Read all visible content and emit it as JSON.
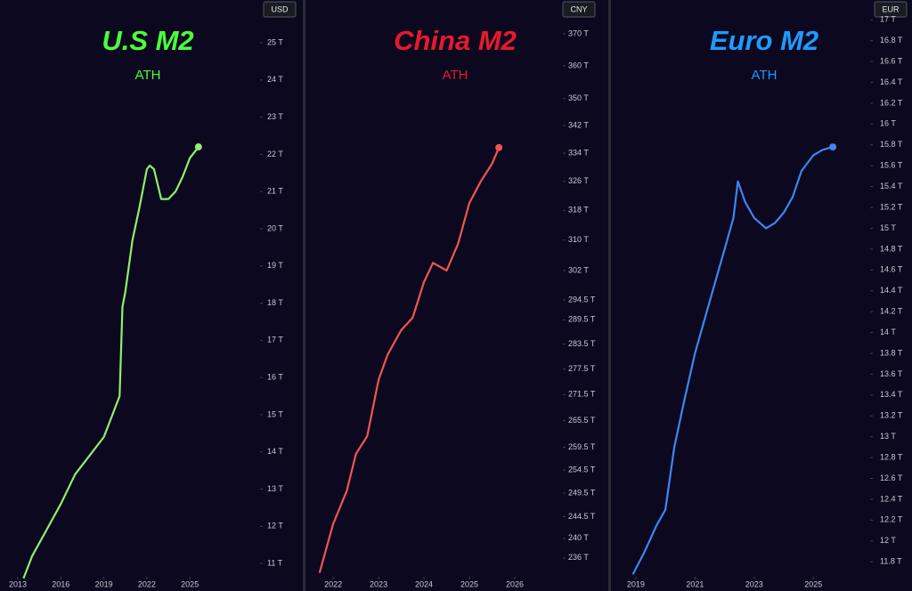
{
  "chart_data": [
    {
      "type": "line",
      "title": "U.S M2",
      "subtitle": "ATH",
      "currency": "USD",
      "title_color": "#4cff3a",
      "color": "#8ef06b",
      "x": [
        2013.4,
        2014,
        2015,
        2016,
        2017,
        2018,
        2019,
        2019.9,
        2020.1,
        2020.3,
        2020.5,
        2021,
        2021.5,
        2022,
        2022.2,
        2022.5,
        2023,
        2023.5,
        2024,
        2024.5,
        2025,
        2025.6
      ],
      "values": [
        10.6,
        11.2,
        11.9,
        12.6,
        13.4,
        13.9,
        14.4,
        15.3,
        15.5,
        17.9,
        18.3,
        19.7,
        20.6,
        21.6,
        21.7,
        21.6,
        20.8,
        20.8,
        21.0,
        21.4,
        21.9,
        22.2
      ],
      "xlim": [
        2011.76,
        2029.77
      ],
      "xticks": [
        2013,
        2016,
        2019,
        2022,
        2025
      ],
      "ylim": [
        10.26,
        26.15
      ],
      "log_scale": false,
      "yticks": [
        {
          "value": 11,
          "label": "11 T"
        },
        {
          "value": 12,
          "label": "12 T"
        },
        {
          "value": 13,
          "label": "13 T"
        },
        {
          "value": 14,
          "label": "14 T"
        },
        {
          "value": 15,
          "label": "15 T"
        },
        {
          "value": 16,
          "label": "16 T"
        },
        {
          "value": 17,
          "label": "17 T"
        },
        {
          "value": 18,
          "label": "18 T"
        },
        {
          "value": 19,
          "label": "19 T"
        },
        {
          "value": 20,
          "label": "20 T"
        },
        {
          "value": 21,
          "label": "21 T"
        },
        {
          "value": 22,
          "label": "22 T"
        },
        {
          "value": 23,
          "label": "23 T"
        },
        {
          "value": 24,
          "label": "24 T"
        },
        {
          "value": 25,
          "label": "25 T"
        }
      ]
    },
    {
      "type": "line",
      "title": "China M2",
      "subtitle": "ATH",
      "currency": "CNY",
      "title_color": "#e8192c",
      "color": "#f0564f",
      "x": [
        2021.7,
        2022,
        2022.3,
        2022.5,
        2022.75,
        2023,
        2023.2,
        2023.5,
        2023.75,
        2024,
        2024.2,
        2024.5,
        2024.75,
        2025,
        2025.25,
        2025.5,
        2025.65
      ],
      "values": [
        233,
        243,
        250,
        258,
        262,
        275,
        281,
        287,
        290,
        299,
        304,
        302,
        309,
        320,
        326,
        331,
        335.6
      ],
      "xlim": [
        2021.39,
        2027.02
      ],
      "xticks": [
        2022,
        2023,
        2024,
        2025,
        2026
      ],
      "ylim": [
        229.4,
        380.9
      ],
      "log_scale": true,
      "yticks": [
        {
          "value": 236,
          "label": "236 T"
        },
        {
          "value": 240,
          "label": "240 T"
        },
        {
          "value": 244.5,
          "label": "244.5 T"
        },
        {
          "value": 249.5,
          "label": "249.5 T"
        },
        {
          "value": 254.5,
          "label": "254.5 T"
        },
        {
          "value": 259.5,
          "label": "259.5 T"
        },
        {
          "value": 265.5,
          "label": "265.5 T"
        },
        {
          "value": 271.5,
          "label": "271.5 T"
        },
        {
          "value": 277.5,
          "label": "277.5 T"
        },
        {
          "value": 283.5,
          "label": "283.5 T"
        },
        {
          "value": 289.5,
          "label": "289.5 T"
        },
        {
          "value": 294.5,
          "label": "294.5 T"
        },
        {
          "value": 302,
          "label": "302 T"
        },
        {
          "value": 310,
          "label": "310 T"
        },
        {
          "value": 318,
          "label": "318 T"
        },
        {
          "value": 326,
          "label": "326 T"
        },
        {
          "value": 334,
          "label": "334 T"
        },
        {
          "value": 342,
          "label": "342 T"
        },
        {
          "value": 350,
          "label": "350 T"
        },
        {
          "value": 360,
          "label": "360 T"
        },
        {
          "value": 370,
          "label": "370 T"
        }
      ]
    },
    {
      "type": "line",
      "title": "Euro M2",
      "subtitle": "ATH",
      "currency": "EUR",
      "title_color": "#1e9bff",
      "color": "#3d86f0",
      "x": [
        2018.9,
        2019.3,
        2019.7,
        2020.0,
        2020.3,
        2020.6,
        2021,
        2021.5,
        2022,
        2022.3,
        2022.45,
        2022.7,
        2023,
        2023.4,
        2023.7,
        2024,
        2024.3,
        2024.6,
        2025,
        2025.3,
        2025.66
      ],
      "values": [
        11.68,
        11.9,
        12.15,
        12.3,
        12.9,
        13.3,
        13.8,
        14.3,
        14.8,
        15.1,
        15.45,
        15.25,
        15.1,
        15.0,
        15.05,
        15.15,
        15.3,
        15.55,
        15.7,
        15.75,
        15.78
      ],
      "xlim": [
        2018.16,
        2026.86
      ],
      "xticks": [
        2019,
        2021,
        2023,
        2025
      ],
      "ylim": [
        11.52,
        17.19
      ],
      "log_scale": false,
      "yticks": [
        {
          "value": 11.8,
          "label": "11.8 T"
        },
        {
          "value": 12,
          "label": "12 T"
        },
        {
          "value": 12.2,
          "label": "12.2 T"
        },
        {
          "value": 12.4,
          "label": "12.4 T"
        },
        {
          "value": 12.6,
          "label": "12.6 T"
        },
        {
          "value": 12.8,
          "label": "12.8 T"
        },
        {
          "value": 13,
          "label": "13 T"
        },
        {
          "value": 13.2,
          "label": "13.2 T"
        },
        {
          "value": 13.4,
          "label": "13.4 T"
        },
        {
          "value": 13.6,
          "label": "13.6 T"
        },
        {
          "value": 13.8,
          "label": "13.8 T"
        },
        {
          "value": 14,
          "label": "14 T"
        },
        {
          "value": 14.2,
          "label": "14.2 T"
        },
        {
          "value": 14.4,
          "label": "14.4 T"
        },
        {
          "value": 14.6,
          "label": "14.6 T"
        },
        {
          "value": 14.8,
          "label": "14.8 T"
        },
        {
          "value": 15,
          "label": "15 T"
        },
        {
          "value": 15.2,
          "label": "15.2 T"
        },
        {
          "value": 15.4,
          "label": "15.4 T"
        },
        {
          "value": 15.6,
          "label": "15.6 T"
        },
        {
          "value": 15.8,
          "label": "15.8 T"
        },
        {
          "value": 16,
          "label": "16 T"
        },
        {
          "value": 16.2,
          "label": "16.2 T"
        },
        {
          "value": 16.4,
          "label": "16.4 T"
        },
        {
          "value": 16.6,
          "label": "16.6 T"
        },
        {
          "value": 16.8,
          "label": "16.8 T"
        },
        {
          "value": 17,
          "label": "17 T"
        }
      ]
    }
  ]
}
